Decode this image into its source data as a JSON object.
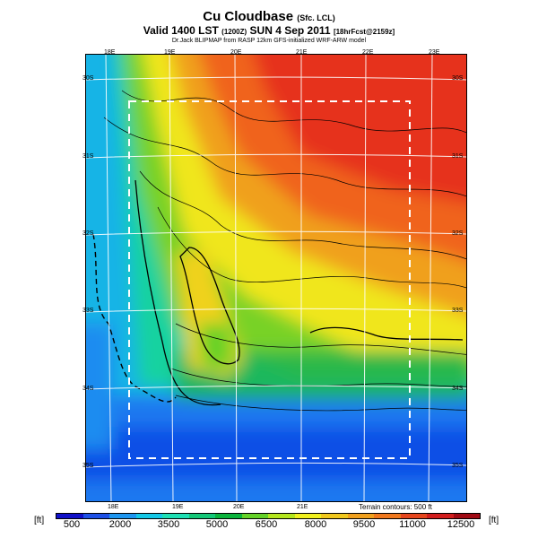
{
  "header": {
    "title": "Cu Cloudbase",
    "title_suffix": "(Sfc. LCL)",
    "valid_line": "Valid 1400 LST",
    "valid_zulu": "(1200Z)",
    "valid_date": "SUN 4 Sep 2011",
    "forecast_tag": "[18hrFcst@2159z]",
    "credit": "Dr.Jack BLIPMAP from RASP 12km GFS-initialized WRF-ARW model"
  },
  "map": {
    "lon_labels_top": [
      "18E",
      "19E",
      "20E",
      "21E",
      "22E",
      "23E"
    ],
    "lon_labels_bottom": [
      "18E",
      "19E",
      "20E",
      "21E"
    ],
    "lat_labels_left": [
      "30S",
      "31S",
      "32S",
      "33S",
      "34S",
      "35S"
    ],
    "lat_labels_right": [
      "30S",
      "31S",
      "32S",
      "33S",
      "34S",
      "35S"
    ]
  },
  "legend": {
    "terrain_note": "Terrain contours: 500 ft",
    "unit_left": "[ft]",
    "unit_right": "[ft]",
    "tick_labels": [
      "500",
      "2000",
      "3500",
      "5000",
      "6500",
      "8000",
      "9500",
      "11000",
      "12500"
    ],
    "colors": [
      "#1010c8",
      "#1e50e6",
      "#1e96f0",
      "#14c8e6",
      "#1ee0b4",
      "#14c878",
      "#0ab43c",
      "#64d228",
      "#b4e61e",
      "#f0f01e",
      "#f0c81e",
      "#f0a01e",
      "#f0781e",
      "#e6461e",
      "#d21e1e",
      "#a00a14"
    ]
  }
}
